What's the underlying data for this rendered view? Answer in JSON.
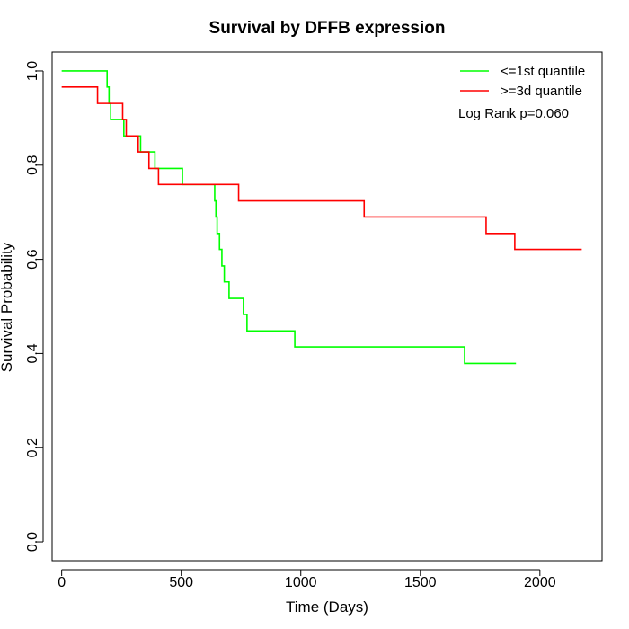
{
  "chart_data": {
    "type": "line",
    "title": "Survival by DFFB expression",
    "xlabel": "Time (Days)",
    "ylabel": "Survival Probability",
    "xlim": [
      -40,
      2260
    ],
    "ylim": [
      -0.04,
      1.04
    ],
    "xticks": [
      0,
      500,
      1000,
      1500,
      2000
    ],
    "yticks": [
      0.0,
      0.2,
      0.4,
      0.6,
      0.8,
      1.0
    ],
    "xtick_labels": [
      "0",
      "500",
      "1000",
      "1500",
      "2000"
    ],
    "ytick_labels": [
      "0.0",
      "0.2",
      "0.4",
      "0.6",
      "0.8",
      "1.0"
    ],
    "legend_position": "top-right",
    "annotation": "Log Rank p=0.060",
    "series": [
      {
        "name": "<=1st quantile",
        "color": "#00ff00",
        "x": [
          0,
          190,
          198,
          205,
          260,
          330,
          390,
          505,
          640,
          645,
          650,
          660,
          670,
          680,
          700,
          760,
          775,
          975,
          1685,
          1900
        ],
        "y": [
          1.0,
          0.966,
          0.931,
          0.897,
          0.862,
          0.828,
          0.793,
          0.759,
          0.724,
          0.69,
          0.655,
          0.621,
          0.586,
          0.552,
          0.517,
          0.483,
          0.448,
          0.414,
          0.379,
          0.379
        ]
      },
      {
        "name": ">=3d quantile",
        "color": "#ff0000",
        "x": [
          0,
          150,
          255,
          270,
          320,
          365,
          405,
          740,
          1265,
          1775,
          1895,
          2175
        ],
        "y": [
          0.966,
          0.931,
          0.897,
          0.862,
          0.828,
          0.793,
          0.759,
          0.724,
          0.69,
          0.655,
          0.621,
          0.621
        ]
      }
    ]
  }
}
